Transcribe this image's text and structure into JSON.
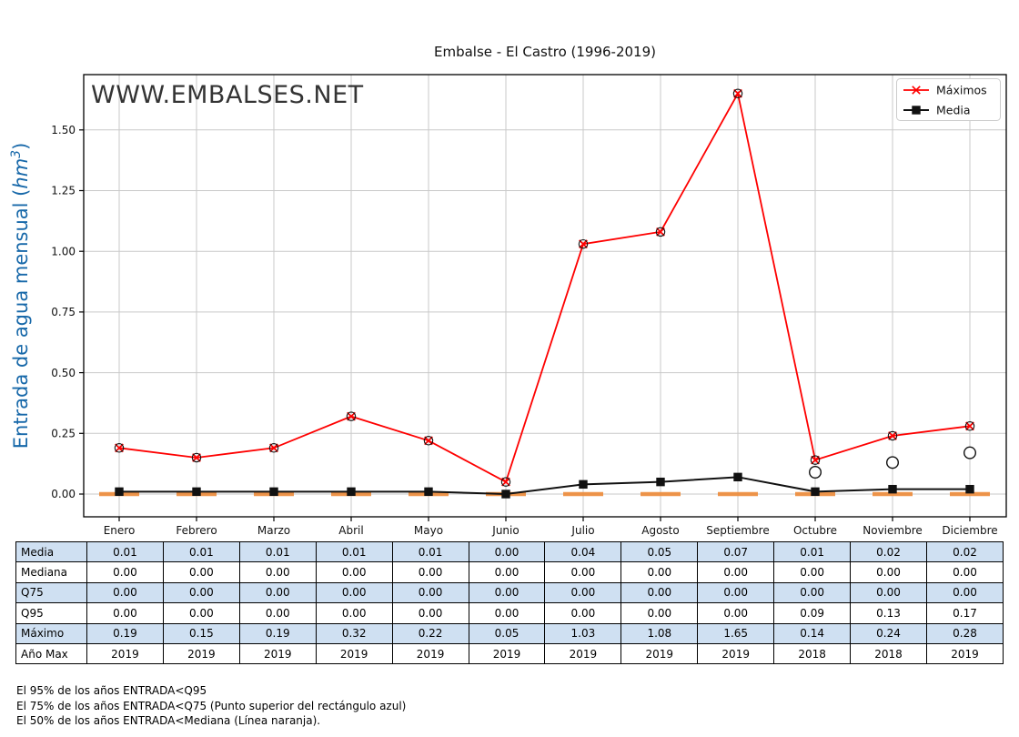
{
  "page": {
    "title": "Embalse - El Castro (1996-2019)",
    "watermark": "WWW.EMBALSES.NET"
  },
  "axes": {
    "ylabel": "Entrada de agua mensual (hm³)",
    "ylabel_prefix": "Entrada de agua mensual (",
    "ylabel_math": "hm",
    "ylabel_sup": "3",
    "ylabel_suffix": ")",
    "yticks": [
      "0.00",
      "0.25",
      "0.50",
      "0.75",
      "1.00",
      "1.25",
      "1.50"
    ],
    "ytick_values": [
      0,
      0.25,
      0.5,
      0.75,
      1.0,
      1.25,
      1.5
    ]
  },
  "legend": {
    "items": [
      {
        "label": "Máximos",
        "color": "#fe0000",
        "marker": "x-in-circle"
      },
      {
        "label": "Media",
        "color": "#111111",
        "marker": "filled-square"
      }
    ]
  },
  "chart_data": {
    "type": "line",
    "title": "Embalse - El Castro (1996-2019)",
    "xlabel": "",
    "ylabel": "Entrada de agua mensual (hm³)",
    "ylim": [
      -0.09,
      1.73
    ],
    "grid": true,
    "legend_position": "upper right",
    "categories": [
      "Enero",
      "Febrero",
      "Marzo",
      "Abril",
      "Mayo",
      "Junio",
      "Julio",
      "Agosto",
      "Septiembre",
      "Octubre",
      "Noviembre",
      "Diciembre"
    ],
    "series": [
      {
        "name": "Máximos",
        "color": "#fe0000",
        "marker": "x-in-circle",
        "values": [
          0.19,
          0.15,
          0.19,
          0.32,
          0.22,
          0.05,
          1.03,
          1.08,
          1.65,
          0.14,
          0.24,
          0.28
        ]
      },
      {
        "name": "Media",
        "color": "#111111",
        "marker": "square",
        "values": [
          0.01,
          0.01,
          0.01,
          0.01,
          0.01,
          0.0,
          0.04,
          0.05,
          0.07,
          0.01,
          0.02,
          0.02
        ]
      },
      {
        "name": "Mediana",
        "color": "#ed8733",
        "marker": "horizontal-dash",
        "values": [
          0,
          0,
          0,
          0,
          0,
          0,
          0,
          0,
          0,
          0,
          0,
          0
        ]
      },
      {
        "name": "Q95",
        "color": "#111111",
        "marker": "open-circle",
        "values": [
          0,
          0,
          0,
          0,
          0,
          0,
          0,
          0,
          0,
          0.09,
          0.13,
          0.17
        ]
      }
    ]
  },
  "table": {
    "row_labels": [
      "Media",
      "Mediana",
      "Q75",
      "Q95",
      "Máximo",
      "Año Max"
    ],
    "rows": [
      [
        "0.01",
        "0.01",
        "0.01",
        "0.01",
        "0.01",
        "0.00",
        "0.04",
        "0.05",
        "0.07",
        "0.01",
        "0.02",
        "0.02"
      ],
      [
        "0.00",
        "0.00",
        "0.00",
        "0.00",
        "0.00",
        "0.00",
        "0.00",
        "0.00",
        "0.00",
        "0.00",
        "0.00",
        "0.00"
      ],
      [
        "0.00",
        "0.00",
        "0.00",
        "0.00",
        "0.00",
        "0.00",
        "0.00",
        "0.00",
        "0.00",
        "0.00",
        "0.00",
        "0.00"
      ],
      [
        "0.00",
        "0.00",
        "0.00",
        "0.00",
        "0.00",
        "0.00",
        "0.00",
        "0.00",
        "0.00",
        "0.09",
        "0.13",
        "0.17"
      ],
      [
        "0.19",
        "0.15",
        "0.19",
        "0.32",
        "0.22",
        "0.05",
        "1.03",
        "1.08",
        "1.65",
        "0.14",
        "0.24",
        "0.28"
      ],
      [
        "2019",
        "2019",
        "2019",
        "2019",
        "2019",
        "2019",
        "2019",
        "2019",
        "2019",
        "2018",
        "2018",
        "2019"
      ]
    ],
    "highlight_color": "#cfe0f2"
  },
  "footnotes": [
    "El 95% de los años ENTRADA<Q95",
    "El 75% de los años ENTRADA<Q75 (Punto superior del rectángulo azul)",
    "El 50% de los años ENTRADA<Mediana (Línea naranja)."
  ]
}
